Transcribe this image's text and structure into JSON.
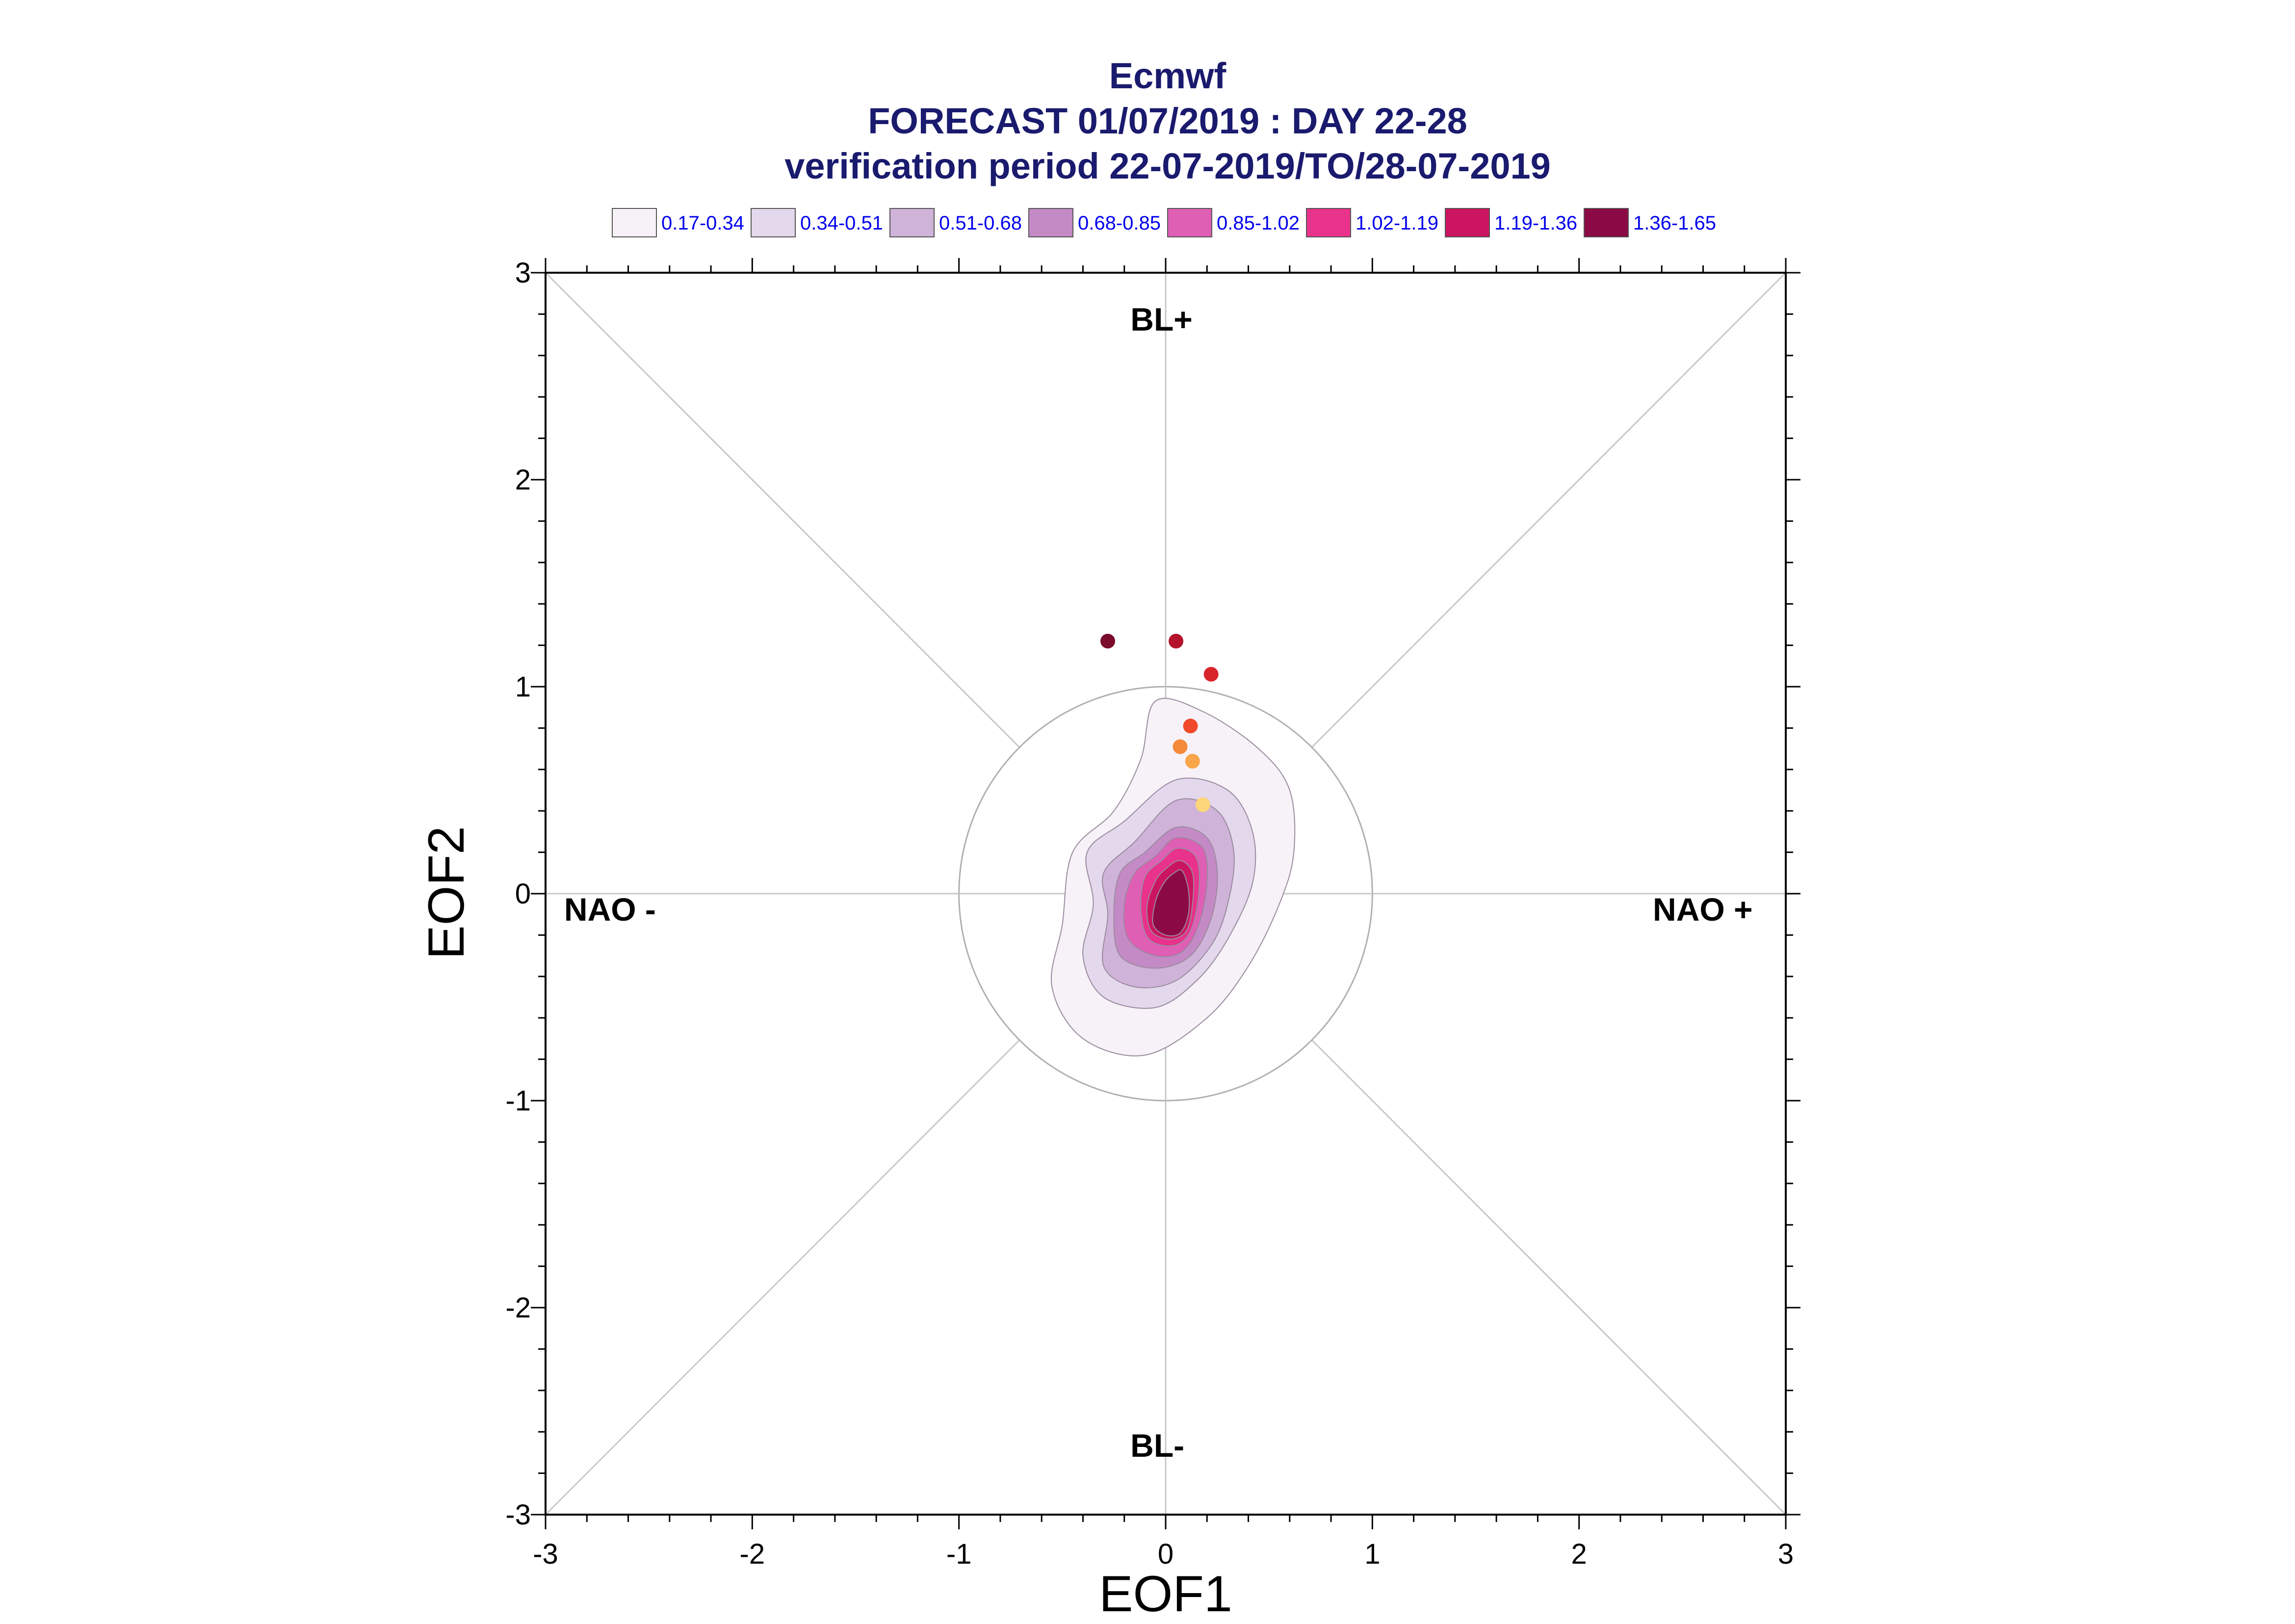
{
  "chart_data": {
    "type": "scatter",
    "title_lines": [
      "Ecmwf",
      "FORECAST 01/07/2019 : DAY 22-28",
      "verification period 22-07-2019/TO/28-07-2019"
    ],
    "xlabel": "EOF1",
    "ylabel": "EOF2",
    "xlim": [
      -3,
      3
    ],
    "ylim": [
      -3,
      3
    ],
    "x_ticks": [
      "-3",
      "-2",
      "-1",
      "0",
      "1",
      "2",
      "3"
    ],
    "y_ticks": [
      "-3",
      "-2",
      "-1",
      "0",
      "1",
      "2",
      "3"
    ],
    "grid": false,
    "unit_circle_radius": 1,
    "regions": {
      "top": "BL+",
      "bottom": "BL-",
      "left": "NAO -",
      "right": "NAO +"
    },
    "legend": {
      "placement": "top",
      "entries": [
        {
          "label": "0.17-0.34",
          "color": "#f6f2f8"
        },
        {
          "label": "0.34-0.51",
          "color": "#e4d8ec"
        },
        {
          "label": "0.51-0.68",
          "color": "#cfb3d8"
        },
        {
          "label": "0.68-0.85",
          "color": "#c48ac6"
        },
        {
          "label": "0.85-1.02",
          "color": "#de5fb4"
        },
        {
          "label": "1.02-1.19",
          "color": "#e8328c"
        },
        {
          "label": "1.19-1.36",
          "color": "#cc1560"
        },
        {
          "label": "1.36-1.65",
          "color": "#8b0a45"
        }
      ]
    },
    "density_contours": [
      {
        "level": "0.17-0.34",
        "color": "#f6f2f8",
        "points": [
          [
            -0.05,
            0.93
          ],
          [
            0.18,
            0.88
          ],
          [
            0.45,
            0.7
          ],
          [
            0.6,
            0.5
          ],
          [
            0.62,
            0.2
          ],
          [
            0.55,
            -0.05
          ],
          [
            0.4,
            -0.35
          ],
          [
            0.2,
            -0.6
          ],
          [
            -0.1,
            -0.78
          ],
          [
            -0.4,
            -0.7
          ],
          [
            -0.55,
            -0.45
          ],
          [
            -0.5,
            -0.15
          ],
          [
            -0.45,
            0.2
          ],
          [
            -0.25,
            0.4
          ],
          [
            -0.12,
            0.65
          ]
        ]
      },
      {
        "level": "0.34-0.51",
        "color": "#e4d8ec",
        "points": [
          [
            0.05,
            0.55
          ],
          [
            0.3,
            0.5
          ],
          [
            0.42,
            0.3
          ],
          [
            0.42,
            0.05
          ],
          [
            0.3,
            -0.22
          ],
          [
            0.15,
            -0.42
          ],
          [
            -0.05,
            -0.55
          ],
          [
            -0.3,
            -0.5
          ],
          [
            -0.4,
            -0.3
          ],
          [
            -0.35,
            -0.05
          ],
          [
            -0.38,
            0.2
          ],
          [
            -0.2,
            0.35
          ]
        ]
      },
      {
        "level": "0.51-0.68",
        "color": "#cfb3d8",
        "points": [
          [
            0.05,
            0.45
          ],
          [
            0.25,
            0.4
          ],
          [
            0.33,
            0.2
          ],
          [
            0.3,
            -0.05
          ],
          [
            0.22,
            -0.25
          ],
          [
            0.05,
            -0.42
          ],
          [
            -0.15,
            -0.45
          ],
          [
            -0.3,
            -0.35
          ],
          [
            -0.28,
            -0.1
          ],
          [
            -0.3,
            0.1
          ],
          [
            -0.15,
            0.25
          ]
        ]
      },
      {
        "level": "0.68-0.85",
        "color": "#c48ac6",
        "points": [
          [
            0.05,
            0.32
          ],
          [
            0.2,
            0.27
          ],
          [
            0.25,
            0.1
          ],
          [
            0.22,
            -0.12
          ],
          [
            0.12,
            -0.3
          ],
          [
            -0.05,
            -0.36
          ],
          [
            -0.22,
            -0.3
          ],
          [
            -0.25,
            -0.1
          ],
          [
            -0.22,
            0.1
          ],
          [
            -0.1,
            0.2
          ]
        ]
      },
      {
        "level": "0.85-1.02",
        "color": "#de5fb4",
        "points": [
          [
            0.05,
            0.27
          ],
          [
            0.18,
            0.22
          ],
          [
            0.2,
            0.05
          ],
          [
            0.16,
            -0.15
          ],
          [
            0.08,
            -0.28
          ],
          [
            -0.05,
            -0.3
          ],
          [
            -0.18,
            -0.22
          ],
          [
            -0.2,
            -0.05
          ],
          [
            -0.15,
            0.1
          ],
          [
            -0.05,
            0.18
          ]
        ]
      },
      {
        "level": "1.02-1.19",
        "color": "#e8328c",
        "points": [
          [
            0.06,
            0.22
          ],
          [
            0.15,
            0.17
          ],
          [
            0.16,
            0.0
          ],
          [
            0.12,
            -0.18
          ],
          [
            0.04,
            -0.25
          ],
          [
            -0.08,
            -0.22
          ],
          [
            -0.12,
            -0.08
          ],
          [
            -0.1,
            0.08
          ],
          [
            -0.02,
            0.16
          ]
        ]
      },
      {
        "level": "1.19-1.36",
        "color": "#cc1560",
        "points": [
          [
            0.07,
            0.16
          ],
          [
            0.13,
            0.1
          ],
          [
            0.13,
            -0.05
          ],
          [
            0.1,
            -0.18
          ],
          [
            0.02,
            -0.22
          ],
          [
            -0.07,
            -0.18
          ],
          [
            -0.09,
            -0.06
          ],
          [
            -0.05,
            0.06
          ],
          [
            0.0,
            0.12
          ]
        ]
      },
      {
        "level": "1.36-1.65",
        "color": "#8b0a45",
        "points": [
          [
            0.08,
            0.11
          ],
          [
            0.11,
            0.02
          ],
          [
            0.11,
            -0.1
          ],
          [
            0.07,
            -0.19
          ],
          [
            0.0,
            -0.2
          ],
          [
            -0.06,
            -0.15
          ],
          [
            -0.05,
            -0.04
          ],
          [
            -0.01,
            0.05
          ],
          [
            0.04,
            0.1
          ]
        ]
      }
    ],
    "points": [
      {
        "x": -0.28,
        "y": 1.22,
        "color": "#7a0b2a"
      },
      {
        "x": 0.05,
        "y": 1.22,
        "color": "#b5132b"
      },
      {
        "x": 0.22,
        "y": 1.06,
        "color": "#d8252a"
      },
      {
        "x": 0.12,
        "y": 0.81,
        "color": "#f04a2a"
      },
      {
        "x": 0.07,
        "y": 0.71,
        "color": "#f58a3a"
      },
      {
        "x": 0.13,
        "y": 0.64,
        "color": "#f9a54a"
      },
      {
        "x": 0.18,
        "y": 0.43,
        "color": "#fdd57a"
      }
    ]
  }
}
